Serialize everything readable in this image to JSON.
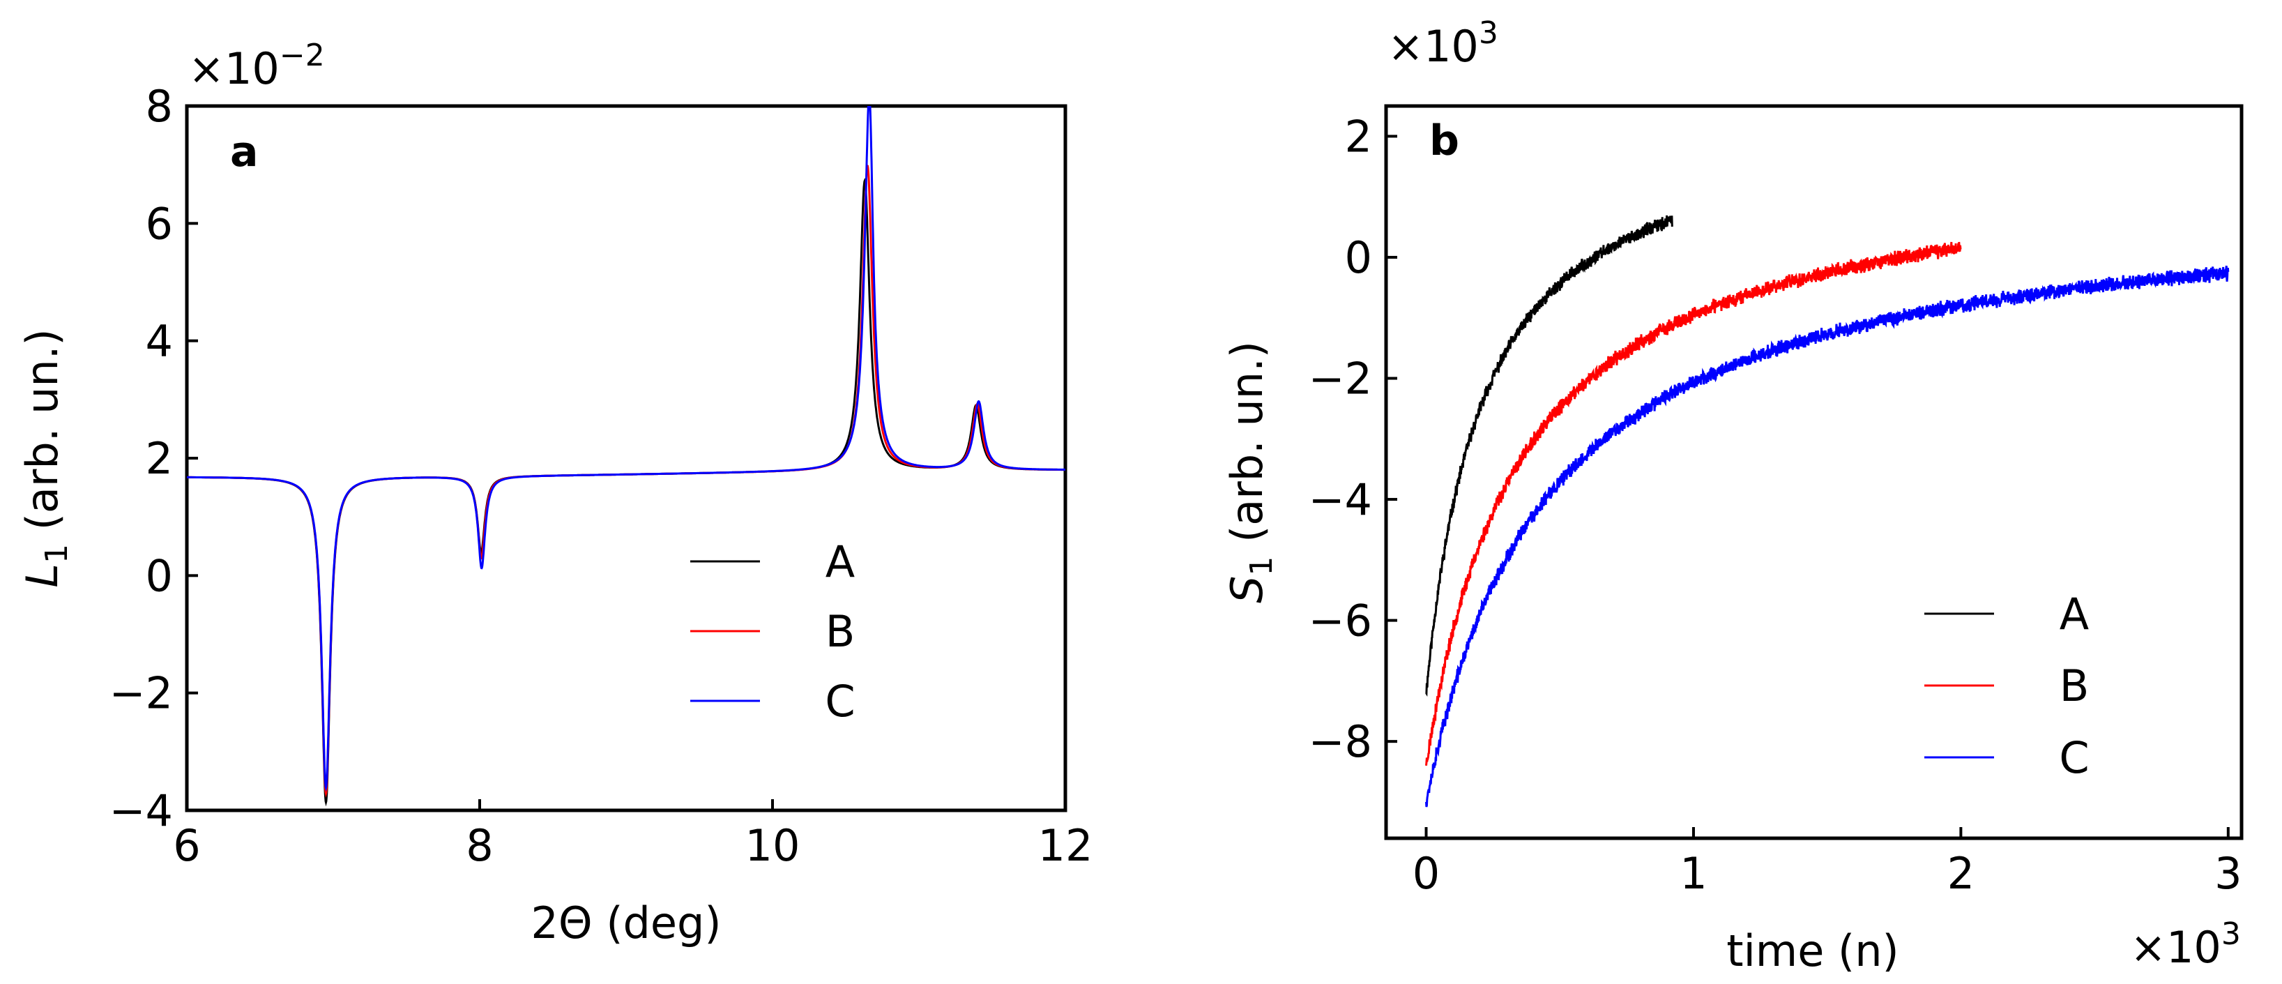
{
  "chart_data": [
    {
      "type": "line",
      "panel_label": "a",
      "xlabel": "2Θ (deg)",
      "ylabel_main": "L",
      "ylabel_sub": "1",
      "ylabel_rest": " (arb. un.)",
      "y_multiplier_base": "×10",
      "y_multiplier_exp": "−2",
      "xlim": [
        6,
        12
      ],
      "ylim": [
        -4,
        8
      ],
      "xticks": [
        6,
        8,
        10,
        12
      ],
      "xtick_labels": [
        "6",
        "8",
        "10",
        "12"
      ],
      "yticks": [
        -4,
        -2,
        0,
        2,
        4,
        6,
        8
      ],
      "ytick_labels": [
        "−4",
        "−2",
        "0",
        "2",
        "4",
        "6",
        "8"
      ],
      "legend_position": "lower-right",
      "baseline": {
        "left": 1.68,
        "right": 1.8,
        "x_start": 6,
        "x_end": 12
      },
      "series": [
        {
          "name": "A",
          "color": "#000000",
          "peaks": [
            {
              "x0": 6.95,
              "amp": -5.55,
              "w": 0.035,
              "d": 0
            },
            {
              "x0": 8.01,
              "amp": -1.3,
              "w": 0.03,
              "d": 0
            },
            {
              "x0": 10.63,
              "amp": 4.95,
              "w": 0.04,
              "d": 0
            },
            {
              "x0": 11.39,
              "amp": 1.1,
              "w": 0.04,
              "d": 0
            }
          ]
        },
        {
          "name": "B",
          "color": "#ff0000",
          "peaks": [
            {
              "x0": 6.95,
              "amp": -5.4,
              "w": 0.035,
              "d": 0
            },
            {
              "x0": 8.01,
              "amp": -1.4,
              "w": 0.03,
              "d": 0.05
            },
            {
              "x0": 10.65,
              "amp": 5.2,
              "w": 0.04,
              "d": 0.15
            },
            {
              "x0": 11.4,
              "amp": 1.12,
              "w": 0.04,
              "d": 0.03
            }
          ]
        },
        {
          "name": "C",
          "color": "#0000ff",
          "peaks": [
            {
              "x0": 6.95,
              "amp": -5.3,
              "w": 0.035,
              "d": 0
            },
            {
              "x0": 8.01,
              "amp": -1.55,
              "w": 0.03,
              "d": 0.17
            },
            {
              "x0": 10.67,
              "amp": 5.95,
              "w": 0.04,
              "d": 1.8
            },
            {
              "x0": 11.41,
              "amp": 1.16,
              "w": 0.04,
              "d": 0.06
            }
          ]
        }
      ]
    },
    {
      "type": "line",
      "panel_label": "b",
      "xlabel": "time (n)",
      "ylabel_main": "S",
      "ylabel_sub": "1",
      "ylabel_rest": " (arb. un.)",
      "y_multiplier_base": "×10",
      "y_multiplier_exp": "3",
      "x_multiplier_base": "×10",
      "x_multiplier_exp": "3",
      "xlim": [
        -0.15,
        3.05
      ],
      "ylim": [
        -9.6,
        2.5
      ],
      "xticks": [
        0,
        1,
        2,
        3
      ],
      "xtick_labels": [
        "0",
        "1",
        "2",
        "3"
      ],
      "yticks": [
        -8,
        -6,
        -4,
        -2,
        0,
        2
      ],
      "ytick_labels": [
        "−8",
        "−6",
        "−4",
        "−2",
        "0",
        "2"
      ],
      "legend_position": "lower-right",
      "series": [
        {
          "name": "A",
          "color": "#000000",
          "x_end": 0.92,
          "start": -7.2,
          "asymptote": 2.4,
          "tau": 0.21,
          "noise": 0.09,
          "seed": 11
        },
        {
          "name": "B",
          "color": "#ff0000",
          "x_end": 2.0,
          "start": -8.4,
          "asymptote": 1.65,
          "tau": 0.35,
          "noise": 0.1,
          "seed": 23
        },
        {
          "name": "C",
          "color": "#0000ff",
          "x_end": 3.0,
          "start": -9.0,
          "asymptote": 1.05,
          "tau": 0.45,
          "noise": 0.1,
          "seed": 37
        }
      ]
    }
  ]
}
